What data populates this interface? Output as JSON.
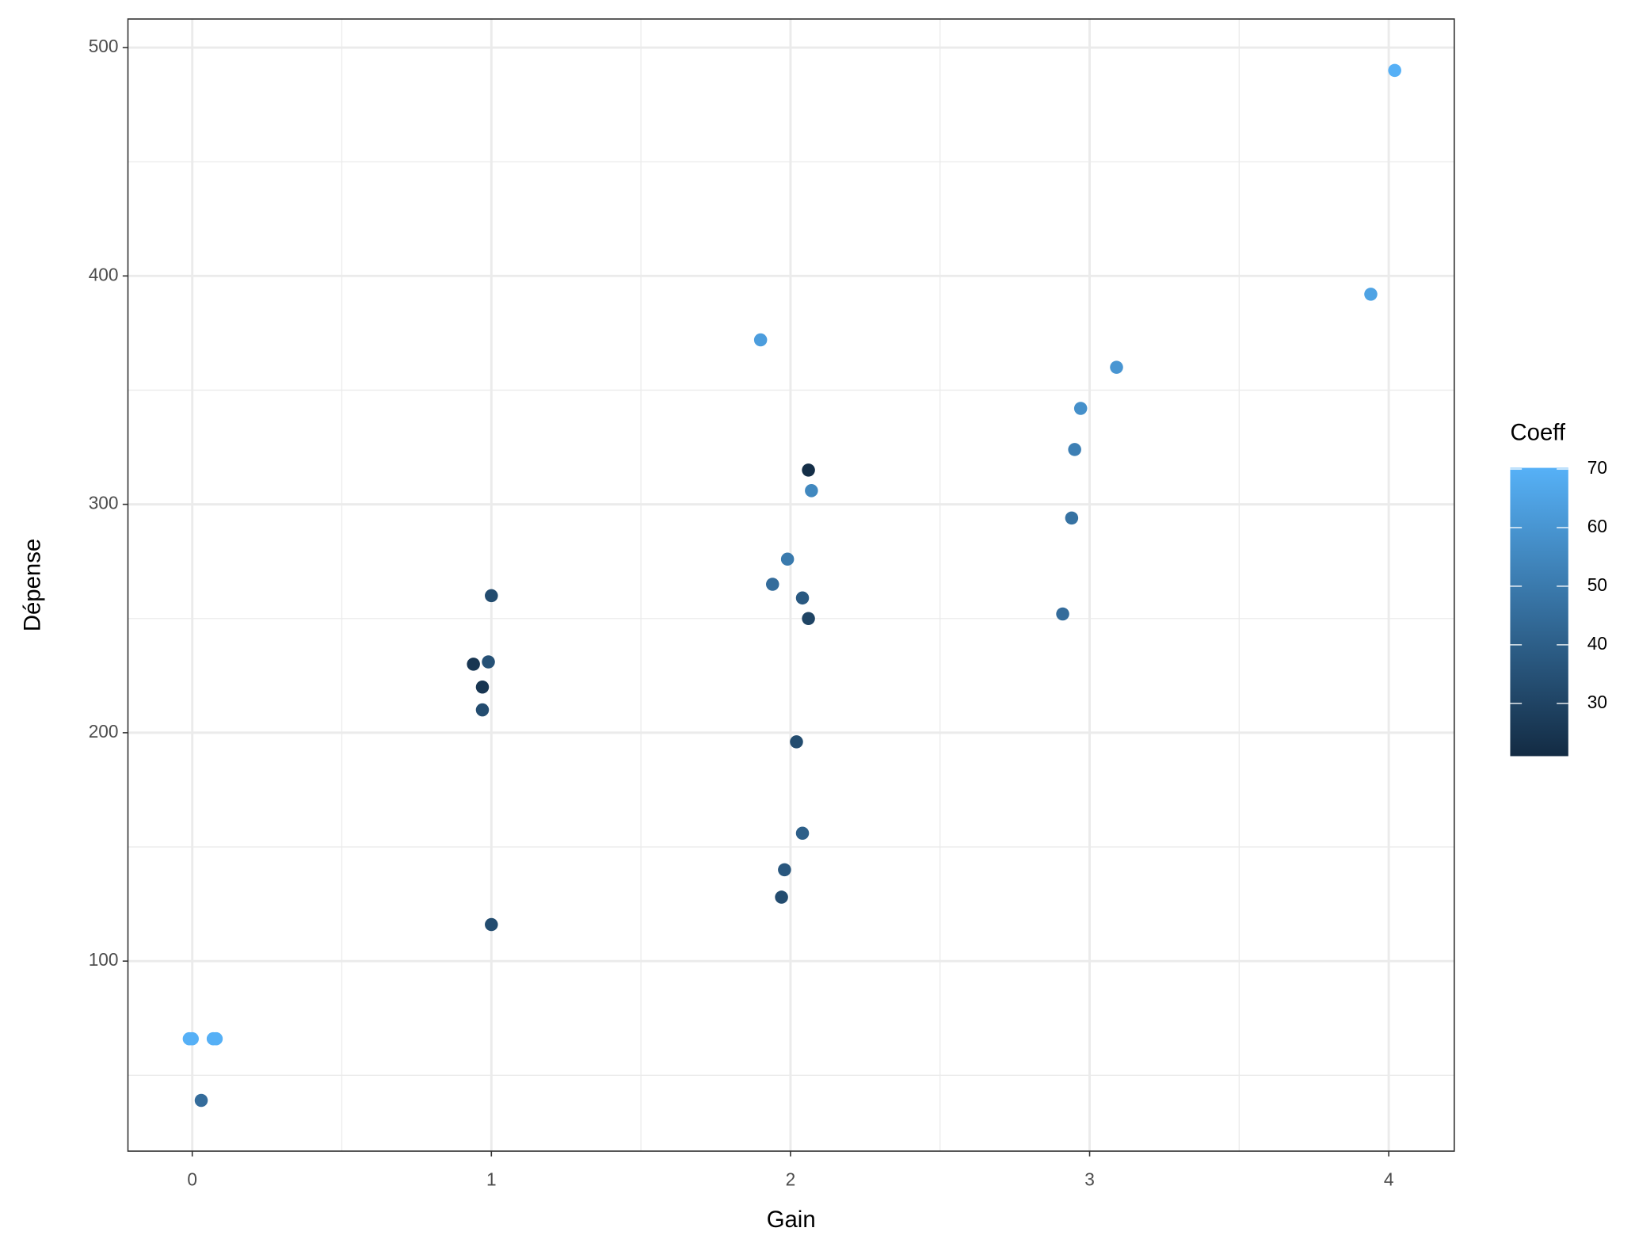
{
  "chart_data": {
    "type": "scatter",
    "x_label": "Gain",
    "y_label": "Dépense",
    "legend_title": "Coeff",
    "x": [
      4.02,
      3.94,
      1.9,
      3.09,
      2.97,
      2.95,
      2.06,
      2.07,
      2.94,
      1.99,
      1.94,
      1.0,
      2.04,
      2.06,
      2.91,
      0.99,
      0.94,
      0.97,
      0.97,
      2.02,
      2.04,
      1.98,
      1.97,
      1.0,
      -0.01,
      0.0,
      0.07,
      0.08,
      0.03
    ],
    "y": [
      490,
      392,
      372,
      360,
      342,
      324,
      315,
      306,
      294,
      276,
      265,
      260,
      259,
      250,
      252,
      231,
      230,
      220,
      210,
      196,
      156,
      140,
      128,
      116,
      66,
      66,
      66,
      66,
      39
    ],
    "coeff": [
      70,
      65,
      63,
      60,
      58,
      52,
      22,
      55,
      47,
      50,
      45,
      33,
      38,
      30,
      45,
      35,
      25,
      25,
      33,
      33,
      40,
      37,
      33,
      33,
      70,
      70,
      70,
      70,
      45
    ],
    "xlim": [
      -0.215,
      4.219
    ],
    "xticks": [
      0,
      1,
      2,
      3,
      4
    ],
    "ylim": [
      16.8,
      512.5
    ],
    "yticks": [
      100,
      200,
      300,
      400,
      500
    ],
    "clim": [
      21,
      70.2
    ],
    "cticks": [
      30,
      40,
      50,
      60,
      70
    ],
    "color_low": "#132b43",
    "color_high": "#56b1f7",
    "grid": true
  }
}
